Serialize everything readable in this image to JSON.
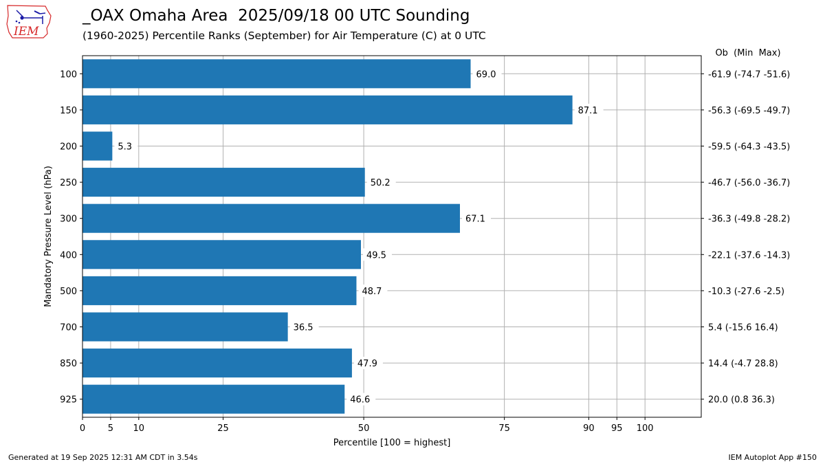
{
  "header": {
    "title": "_OAX Omaha Area  2025/09/18 00 UTC Sounding",
    "subtitle": "(1960-2025) Percentile Ranks (September) for Air Temperature (C) at 0 UTC"
  },
  "logo": {
    "text": "IEM",
    "icon": "iem-logo-icon"
  },
  "footer": {
    "generated": "Generated at 19 Sep 2025 12:31 AM CDT in 3.54s",
    "app": "IEM Autoplot App #150"
  },
  "colors": {
    "bar": "#1f77b4",
    "grid": "#b0b0b0",
    "logo_red": "#d62728",
    "logo_blue": "#1a1aa6"
  },
  "chart_data": {
    "type": "bar",
    "orientation": "horizontal",
    "xlabel": "Percentile [100 = highest]",
    "ylabel": "Mandatory Pressure Level (hPa)",
    "xlim": [
      0,
      110
    ],
    "xticks": [
      0,
      5,
      10,
      25,
      50,
      75,
      90,
      95,
      100
    ],
    "right_header": "Ob  (Min  Max)",
    "grid": true,
    "categories": [
      "100",
      "150",
      "200",
      "250",
      "300",
      "400",
      "500",
      "700",
      "850",
      "925"
    ],
    "values": [
      69.0,
      87.1,
      5.3,
      50.2,
      67.1,
      49.5,
      48.7,
      36.5,
      47.9,
      46.6
    ],
    "value_labels": [
      "69.0",
      "87.1",
      "5.3",
      "50.2",
      "67.1",
      "49.5",
      "48.7",
      "36.5",
      "47.9",
      "46.6"
    ],
    "right_labels": [
      "-61.9 (-74.7 -51.6)",
      "-56.3 (-69.5 -49.7)",
      "-59.5 (-64.3 -43.5)",
      "-46.7 (-56.0 -36.7)",
      "-36.3 (-49.8 -28.2)",
      "-22.1 (-37.6 -14.3)",
      "-10.3 (-27.6 -2.5)",
      "5.4 (-15.6 16.4)",
      "14.4 (-4.7 28.8)",
      "20.0 (0.8 36.3)"
    ]
  }
}
